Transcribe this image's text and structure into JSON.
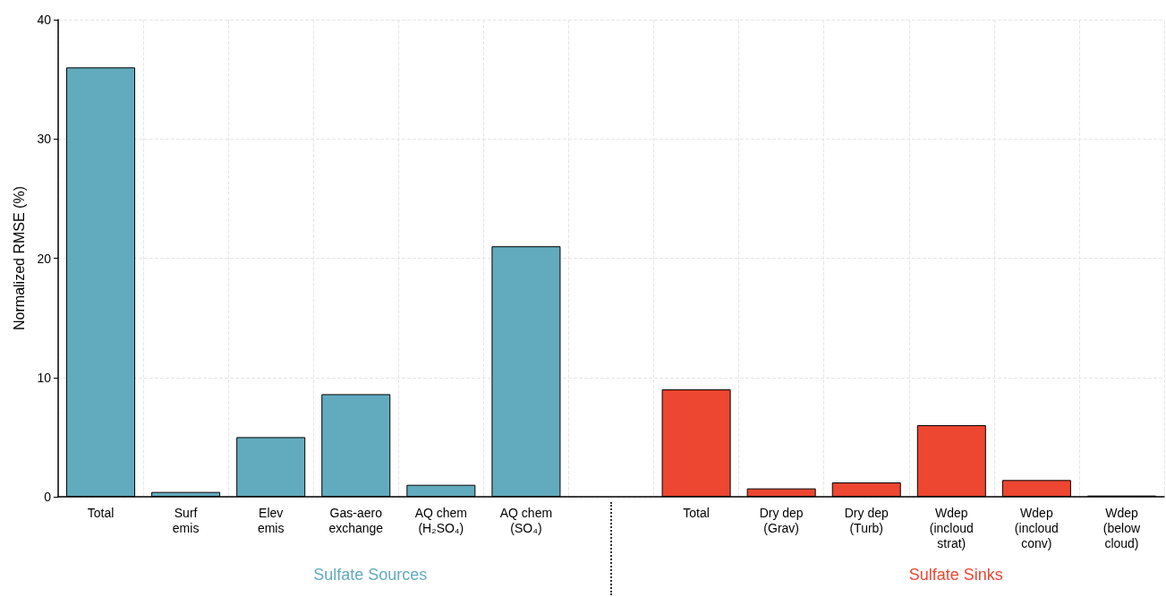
{
  "chart_data": {
    "type": "bar",
    "ylabel": "Normalized RMSE (%)",
    "categories": [
      "Total",
      "Surf\nemis",
      "Elev\nemis",
      "Gas-aero\nexchange",
      "AQ chem\n(H₂SO₄)",
      "AQ chem\n(SO₄)",
      null,
      "Total",
      "Dry dep\n(Grav)",
      "Dry dep\n(Turb)",
      "Wdep\n(incloud\nstrat)",
      "Wdep\n(incloud\nconv)",
      "Wdep\n(below\ncloud)"
    ],
    "series": [
      {
        "name": "Sulfate Sources",
        "color": "#62abbe",
        "values": [
          36,
          0.4,
          5.0,
          8.6,
          1.0,
          21,
          null,
          null,
          null,
          null,
          null,
          null,
          null
        ]
      },
      {
        "name": "Sulfate Sinks",
        "color": "#ed4631",
        "values": [
          null,
          null,
          null,
          null,
          null,
          null,
          null,
          9.0,
          0.7,
          1.2,
          6.0,
          1.4,
          0.1
        ]
      }
    ],
    "ylim": [
      0,
      40
    ],
    "yticks": [
      0,
      10,
      20,
      30,
      40
    ],
    "grid": true,
    "legend": false
  }
}
